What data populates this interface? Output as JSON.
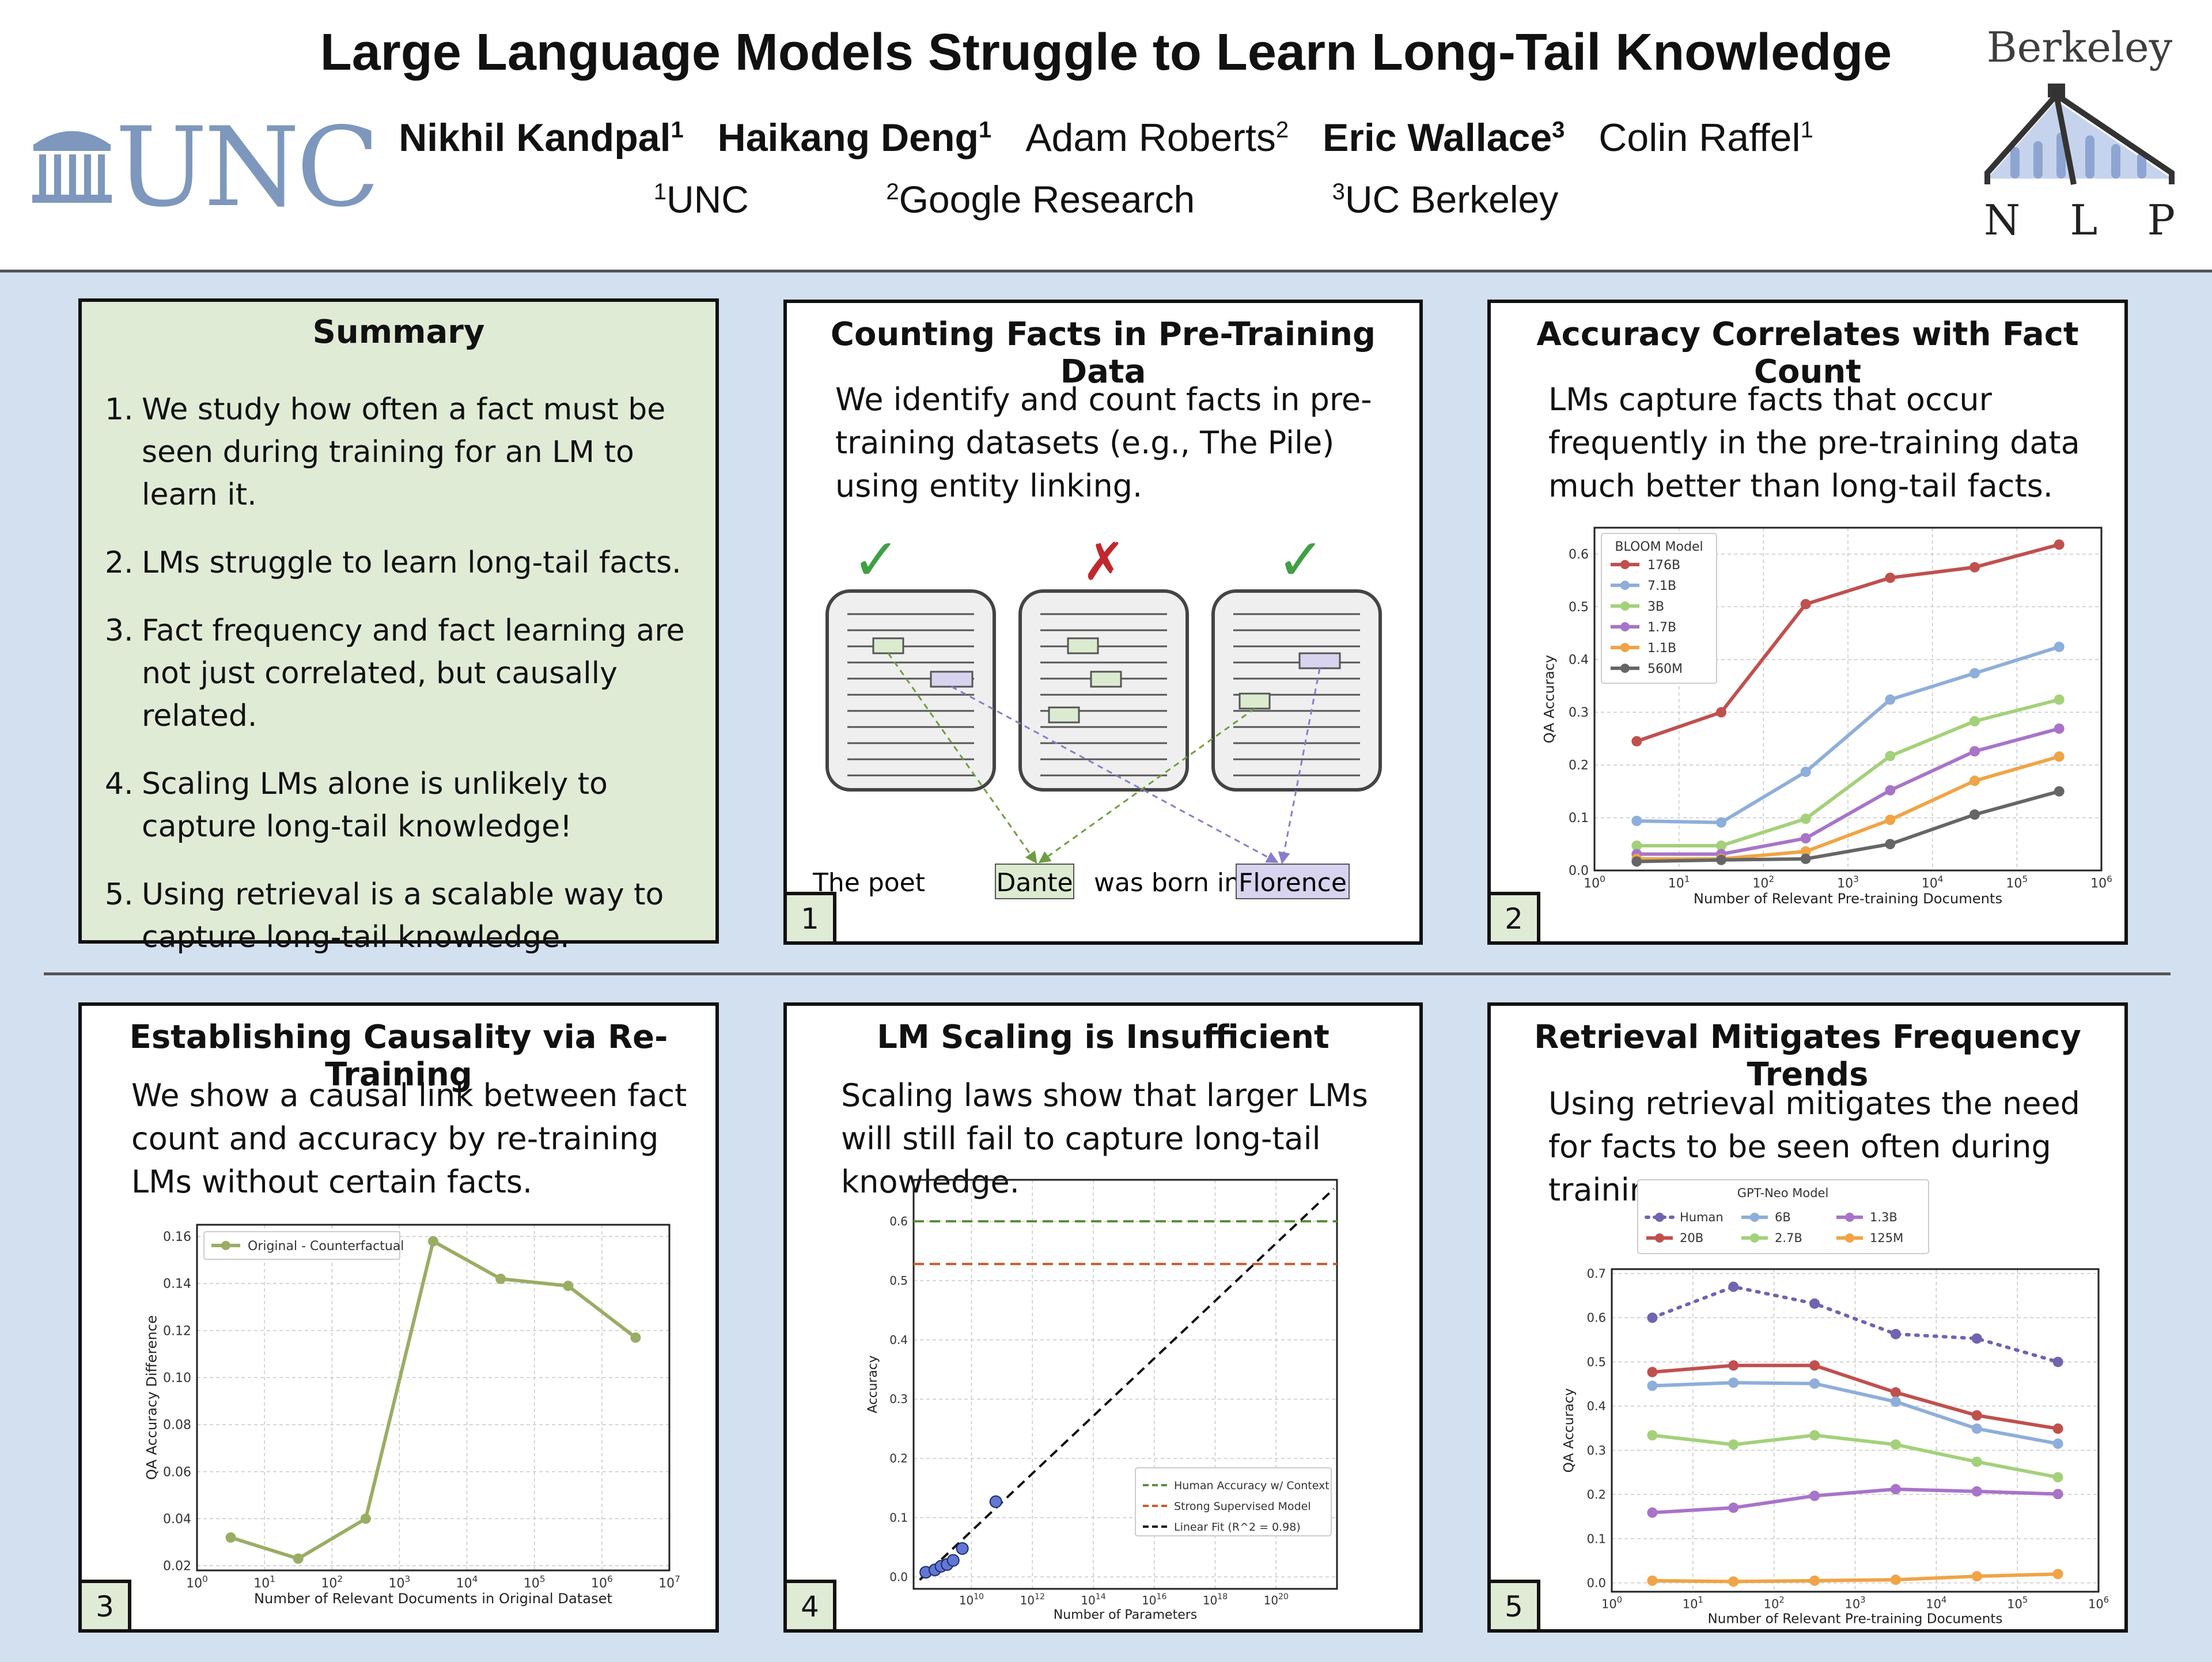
{
  "header": {
    "title": "Large Language Models Struggle to Learn Long-Tail Knowledge",
    "authors": [
      {
        "name": "Nikhil Kandpal",
        "sup": "1",
        "bold": true
      },
      {
        "name": "Haikang Deng",
        "sup": "1",
        "bold": true
      },
      {
        "name": "Adam Roberts",
        "sup": "2",
        "bold": false
      },
      {
        "name": "Eric Wallace",
        "sup": "3",
        "bold": true
      },
      {
        "name": "Colin Raffel",
        "sup": "1",
        "bold": false
      }
    ],
    "affiliations": [
      {
        "sup": "1",
        "name": "UNC"
      },
      {
        "sup": "2",
        "name": "Google Research"
      },
      {
        "sup": "3",
        "name": "UC Berkeley"
      }
    ],
    "logo_left": "UNC",
    "logo_right_top": "Berkeley",
    "logo_right_letters": [
      "N",
      "L",
      "P"
    ]
  },
  "summary": {
    "title": "Summary",
    "items": [
      {
        "n": "1.",
        "text": "We study how often a fact must be seen during training for an LM to learn it."
      },
      {
        "n": "2.",
        "text": "LMs struggle to learn long-tail facts."
      },
      {
        "n": "3.",
        "text": "Fact frequency and fact learning are not just correlated, but causally related."
      },
      {
        "n": "4.",
        "text": "Scaling LMs alone is unlikely to capture long-tail knowledge!"
      },
      {
        "n": "5.",
        "text": "Using retrieval is a scalable way to capture long-tail knowledge."
      }
    ]
  },
  "panel1": {
    "title": "Counting Facts in Pre-Training Data",
    "text": "We identify and count facts in pre-training datasets (e.g., The Pile) using entity linking.",
    "marks": [
      "✓",
      "✗",
      "✓"
    ],
    "sentence": {
      "before": "The poet",
      "e1": "Dante",
      "mid": "was born in",
      "e2": "Florence"
    },
    "number": "1"
  },
  "panel2": {
    "title": "Accuracy Correlates with Fact Count",
    "text": "LMs capture facts that occur frequently in the pre-training data much better than long-tail facts.",
    "number": "2"
  },
  "panel3": {
    "title": "Establishing Causality via Re-Training",
    "text": "We show a causal link between fact count and accuracy by re-training LMs without certain facts.",
    "number": "3"
  },
  "panel4": {
    "title": "LM Scaling is Insufficient",
    "text": "Scaling laws show that larger LMs will still fail to capture long-tail knowledge.",
    "number": "4"
  },
  "panel5": {
    "title": "Retrieval Mitigates Frequency Trends",
    "text": "Using retrieval mitigates the need for facts to be seen often during training.",
    "number": "5"
  },
  "chart_data": [
    {
      "id": "bloom",
      "type": "line",
      "xscale": "log",
      "xlabel": "Number of Relevant Pre-training Documents",
      "ylabel": "QA Accuracy",
      "xticks": [
        "10^0",
        "10^1",
        "10^2",
        "10^3",
        "10^4",
        "10^5",
        "10^6"
      ],
      "yticks": [
        "0.0",
        "0.1",
        "0.2",
        "0.3",
        "0.4",
        "0.5",
        "0.6"
      ],
      "xlim_log10": [
        0,
        6
      ],
      "ylim": [
        0,
        0.65
      ],
      "legend_title": "BLOOM Model",
      "legend_placement": "top-left",
      "grid": true,
      "x_log10": [
        0.5,
        1.5,
        2.5,
        3.5,
        4.5,
        5.5
      ],
      "series": [
        {
          "name": "176B",
          "color": "#c0504d",
          "values": [
            0.245,
            0.3,
            0.505,
            0.555,
            0.575,
            0.618
          ]
        },
        {
          "name": "7.1B",
          "color": "#8eaedb",
          "values": [
            0.094,
            0.091,
            0.187,
            0.324,
            0.374,
            0.424
          ]
        },
        {
          "name": "3B",
          "color": "#a3d17a",
          "values": [
            0.047,
            0.047,
            0.098,
            0.217,
            0.283,
            0.324
          ]
        },
        {
          "name": "1.7B",
          "color": "#a774c9",
          "values": [
            0.031,
            0.031,
            0.061,
            0.152,
            0.226,
            0.269
          ]
        },
        {
          "name": "1.1B",
          "color": "#f0a445",
          "values": [
            0.022,
            0.022,
            0.036,
            0.096,
            0.17,
            0.216
          ]
        },
        {
          "name": "560M",
          "color": "#666666",
          "values": [
            0.017,
            0.02,
            0.022,
            0.05,
            0.106,
            0.15
          ]
        }
      ]
    },
    {
      "id": "causal",
      "type": "line",
      "xscale": "log",
      "xlabel": "Number of Relevant Documents in Original Dataset",
      "ylabel": "QA Accuracy Difference",
      "xticks": [
        "10^0",
        "10^1",
        "10^2",
        "10^3",
        "10^4",
        "10^5",
        "10^6",
        "10^7"
      ],
      "yticks": [
        "0.02",
        "0.04",
        "0.06",
        "0.08",
        "0.10",
        "0.12",
        "0.14",
        "0.16"
      ],
      "xlim_log10": [
        0,
        7
      ],
      "ylim": [
        0.018,
        0.165
      ],
      "legend_placement": "top-left",
      "grid": true,
      "x_log10": [
        0.5,
        1.5,
        2.5,
        3.5,
        4.5,
        5.5,
        6.5
      ],
      "series": [
        {
          "name": "Original - Counterfactual",
          "color": "#9aad64",
          "values": [
            0.032,
            0.023,
            0.04,
            0.158,
            0.142,
            0.139,
            0.117
          ]
        }
      ]
    },
    {
      "id": "scaling",
      "type": "scatter",
      "xscale": "log",
      "xlabel": "Number of Parameters",
      "ylabel": "Accuracy",
      "xticks": [
        "10^10",
        "10^12",
        "10^14",
        "10^16",
        "10^18",
        "10^20"
      ],
      "yticks": [
        "0.0",
        "0.1",
        "0.2",
        "0.3",
        "0.4",
        "0.5",
        "0.6"
      ],
      "xlim_log10": [
        8.1,
        22.0
      ],
      "ylim": [
        -0.02,
        0.67
      ],
      "legend_placement": "bottom-right",
      "grid": true,
      "points_log10x": [
        8.5,
        8.8,
        9.0,
        9.2,
        9.4,
        9.7,
        10.8
      ],
      "points_y": [
        0.008,
        0.012,
        0.018,
        0.021,
        0.028,
        0.048,
        0.127
      ],
      "hlines": [
        {
          "name": "Human Accuracy w/ Context",
          "y": 0.6,
          "color": "#5a8f3c"
        },
        {
          "name": "Strong Supervised Model",
          "y": 0.528,
          "color": "#cc5a2c"
        }
      ],
      "fit": {
        "name": "Linear Fit (R^2 = 0.98)",
        "x_log10": [
          8.3,
          21.9
        ],
        "y": [
          -0.005,
          0.655
        ],
        "color": "#111111"
      }
    },
    {
      "id": "retrieval",
      "type": "line",
      "xscale": "log",
      "xlabel": "Number of Relevant Pre-training Documents",
      "ylabel": "QA Accuracy",
      "xticks": [
        "10^0",
        "10^1",
        "10^2",
        "10^3",
        "10^4",
        "10^5",
        "10^6"
      ],
      "yticks": [
        "0.0",
        "0.1",
        "0.2",
        "0.3",
        "0.4",
        "0.5",
        "0.6",
        "0.7"
      ],
      "xlim_log10": [
        0,
        6
      ],
      "ylim": [
        -0.02,
        0.71
      ],
      "legend_title": "GPT-Neo Model",
      "legend_placement": "top",
      "grid": true,
      "x_log10": [
        0.5,
        1.5,
        2.5,
        3.5,
        4.5,
        5.5
      ],
      "series": [
        {
          "name": "Human",
          "color": "#6f64b0",
          "dotted": true,
          "values": [
            0.6,
            0.67,
            0.632,
            0.563,
            0.553,
            0.5
          ]
        },
        {
          "name": "20B",
          "color": "#c0504d",
          "values": [
            0.477,
            0.492,
            0.492,
            0.431,
            0.379,
            0.349
          ]
        },
        {
          "name": "6B",
          "color": "#8eaedb",
          "values": [
            0.446,
            0.453,
            0.451,
            0.41,
            0.349,
            0.315
          ]
        },
        {
          "name": "2.7B",
          "color": "#a3d17a",
          "values": [
            0.334,
            0.313,
            0.334,
            0.313,
            0.274,
            0.239
          ]
        },
        {
          "name": "1.3B",
          "color": "#a774c9",
          "values": [
            0.159,
            0.17,
            0.197,
            0.212,
            0.207,
            0.201
          ]
        },
        {
          "name": "125M",
          "color": "#f0a445",
          "values": [
            0.005,
            0.003,
            0.005,
            0.007,
            0.015,
            0.02
          ]
        }
      ]
    }
  ]
}
